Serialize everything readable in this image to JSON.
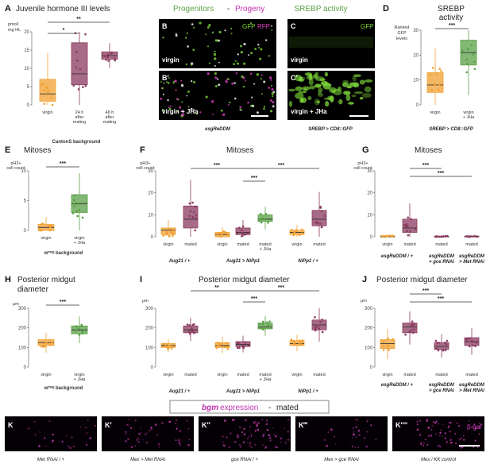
{
  "colors": {
    "virgin": "#f0a030",
    "mated": "#8b3a5f",
    "jha": "#5aa045",
    "gfp": "#7fdc3a",
    "rfp": "#e040c8"
  },
  "panelA": {
    "letter": "A",
    "title": "Juvenile hormone III levels",
    "unit": "pmol/ mg HL",
    "ticks": [
      "0",
      "5",
      "10",
      "15",
      "20"
    ],
    "xlabels": [
      "virgin",
      "24 h after mating",
      "48 h after mating"
    ],
    "background": "CantonS background",
    "sig": [
      "*",
      "**"
    ]
  },
  "panelB": {
    "letter": "B",
    "letter2": "B′",
    "header_left": "Progenitors",
    "header_sep": " - ",
    "header_right": "Progeny",
    "gfp": "GFP",
    "rfp": "RFP",
    "top": "virgin",
    "bottom": "virgin + JHa",
    "genotype": "esgReDDM"
  },
  "panelC": {
    "letter": "C",
    "letter2": "C′",
    "header": "SREBP activity",
    "gfp": "GFP",
    "top": "virgin",
    "bottom": "virgin + JHa",
    "genotype": "SREBP > CD8::GFP"
  },
  "panelD": {
    "letter": "D",
    "title": "SREBP activity",
    "unit": "Ranked GFP levels",
    "ticks": [
      "0",
      "10",
      "20",
      "30"
    ],
    "xlabels": [
      "virgin",
      "virgin + JHa"
    ],
    "genotype": "SREBP > CD8::GFP",
    "sig": "***"
  },
  "panelE": {
    "letter": "E",
    "title": "Mitoses",
    "unit": "pH3+ cell count",
    "ticks": [
      "0",
      "5",
      "10"
    ],
    "xlabels": [
      "virgin",
      "virgin + JHa"
    ],
    "background": "wᵐᵉᵍ background",
    "sig": "***"
  },
  "panelF": {
    "letter": "F",
    "title": "Mitoses",
    "unit": "pH3+ cell count",
    "ticks": [
      "0",
      "10",
      "20",
      "30"
    ],
    "xlabels": [
      "virgin",
      "mated",
      "virgin",
      "mated",
      "mated + JHa",
      "virgin",
      "mated"
    ],
    "genotypes": [
      "Aug21 / +",
      "Aug21 > NiPp1",
      "NiPp1 / +"
    ],
    "sig": [
      "***",
      "***",
      "***"
    ]
  },
  "panelG": {
    "letter": "G",
    "title": "Mitoses",
    "unit": "pH3+ cell count",
    "ticks": [
      "0",
      "10",
      "20",
      "30"
    ],
    "xlabels": [
      "virgin",
      "mated",
      "mated",
      "mated"
    ],
    "genotypes": [
      "esgReDDM / +",
      "esgReDDM > gce RNAi",
      "esgReDDM > Met RNAi"
    ],
    "sig": [
      "***",
      "***"
    ]
  },
  "panelH": {
    "letter": "H",
    "title": "Posterior midgut diameter",
    "unit": "μm",
    "ticks": [
      "0",
      "100",
      "200",
      "300"
    ],
    "xlabels": [
      "virgin",
      "virgin + JHa"
    ],
    "background": "wᵐᵉᵍ background",
    "sig": "***"
  },
  "panelI": {
    "letter": "I",
    "title": "Posterior midgut diameter",
    "unit": "μm",
    "ticks": [
      "0",
      "100",
      "200",
      "300"
    ],
    "xlabels": [
      "virgin",
      "mated",
      "virgin",
      "mated",
      "mated + JHa",
      "virgin",
      "mated"
    ],
    "genotypes": [
      "Aug21 / +",
      "Aug21 > NiPp1",
      "NiPp1 / +"
    ],
    "sig": [
      "**",
      "***",
      "***"
    ]
  },
  "panelJ": {
    "letter": "J",
    "title": "Posterior midgut diameter",
    "unit": "μm",
    "ticks": [
      "0",
      "100",
      "200",
      "300"
    ],
    "xlabels": [
      "virgin",
      "mated",
      "mated",
      "mated"
    ],
    "genotypes": [
      "esgReDDM / +",
      "esgReDDM > gce RNAi",
      "esgReDDM > Met RNAi"
    ],
    "sig": [
      "***",
      "***"
    ]
  },
  "panelK": {
    "header_gene": "bgm",
    "header_rest": " expression",
    "header_sep": " - ",
    "header_cond": "mated",
    "bgal": "β-gal",
    "letters": [
      "K",
      "K′",
      "K″",
      "K‴",
      "K′′′′"
    ],
    "genotypes": [
      "Met RNAi / +",
      "Mex > Met RNAi",
      "gce RNAi / +",
      "Mex > gce RNAi",
      "Mex / KK control"
    ]
  },
  "chart_data": [
    {
      "type": "box",
      "panel": "A",
      "categories": [
        "virgin",
        "24 h after mating",
        "48 h after mating"
      ],
      "medians": [
        3,
        8.5,
        13.5
      ],
      "q1": [
        1,
        5.5,
        12.5
      ],
      "q3": [
        7,
        17,
        14.5
      ],
      "ylim": [
        0,
        20
      ],
      "ylabel": "pmol/ mg HL"
    },
    {
      "type": "box",
      "panel": "D",
      "categories": [
        "virgin",
        "virgin + JHa"
      ],
      "medians": [
        8,
        21
      ],
      "q1": [
        5,
        16
      ],
      "q3": [
        13,
        26
      ],
      "ylim": [
        0,
        30
      ],
      "ylabel": "Ranked GFP levels"
    },
    {
      "type": "box",
      "panel": "E",
      "categories": [
        "virgin",
        "virgin + JHa"
      ],
      "medians": [
        0.5,
        4.5
      ],
      "q1": [
        0,
        3
      ],
      "q3": [
        1,
        6
      ],
      "ylim": [
        0,
        10
      ],
      "ylabel": "pH3+ cell count"
    },
    {
      "type": "box",
      "panel": "F",
      "categories": [
        "virgin",
        "mated",
        "virgin",
        "mated",
        "mated + JHa",
        "virgin",
        "mated"
      ],
      "medians": [
        3,
        8,
        1,
        2,
        8,
        2,
        8
      ],
      "q1": [
        1,
        4,
        0,
        1,
        7,
        1,
        5
      ],
      "q3": [
        4,
        14,
        2,
        4,
        10,
        3,
        12
      ],
      "ylim": [
        0,
        30
      ],
      "ylabel": "pH3+ cell count"
    },
    {
      "type": "box",
      "panel": "G",
      "categories": [
        "virgin",
        "mated",
        "mated",
        "mated"
      ],
      "medians": [
        0,
        4,
        0,
        0
      ],
      "q1": [
        0,
        2,
        0,
        0
      ],
      "q3": [
        0.5,
        8,
        0.3,
        0.3
      ],
      "ylim": [
        0,
        30
      ],
      "ylabel": "pH3+ cell count"
    },
    {
      "type": "box",
      "panel": "H",
      "categories": [
        "virgin",
        "virgin + JHa"
      ],
      "medians": [
        125,
        190
      ],
      "q1": [
        110,
        170
      ],
      "q3": [
        140,
        210
      ],
      "ylim": [
        0,
        300
      ],
      "ylabel": "μm"
    },
    {
      "type": "box",
      "panel": "I",
      "categories": [
        "virgin",
        "mated",
        "virgin",
        "mated",
        "mated + JHa",
        "virgin",
        "mated"
      ],
      "medians": [
        110,
        190,
        110,
        115,
        205,
        120,
        215
      ],
      "q1": [
        100,
        175,
        100,
        105,
        195,
        110,
        190
      ],
      "q3": [
        120,
        210,
        125,
        130,
        225,
        135,
        240
      ],
      "ylim": [
        0,
        300
      ],
      "ylabel": "μm"
    },
    {
      "type": "box",
      "panel": "J",
      "categories": [
        "virgin",
        "mated",
        "mated",
        "mated"
      ],
      "medians": [
        120,
        205,
        105,
        130
      ],
      "q1": [
        95,
        175,
        90,
        110
      ],
      "q3": [
        140,
        225,
        125,
        150
      ],
      "ylim": [
        0,
        300
      ],
      "ylabel": "μm"
    }
  ]
}
